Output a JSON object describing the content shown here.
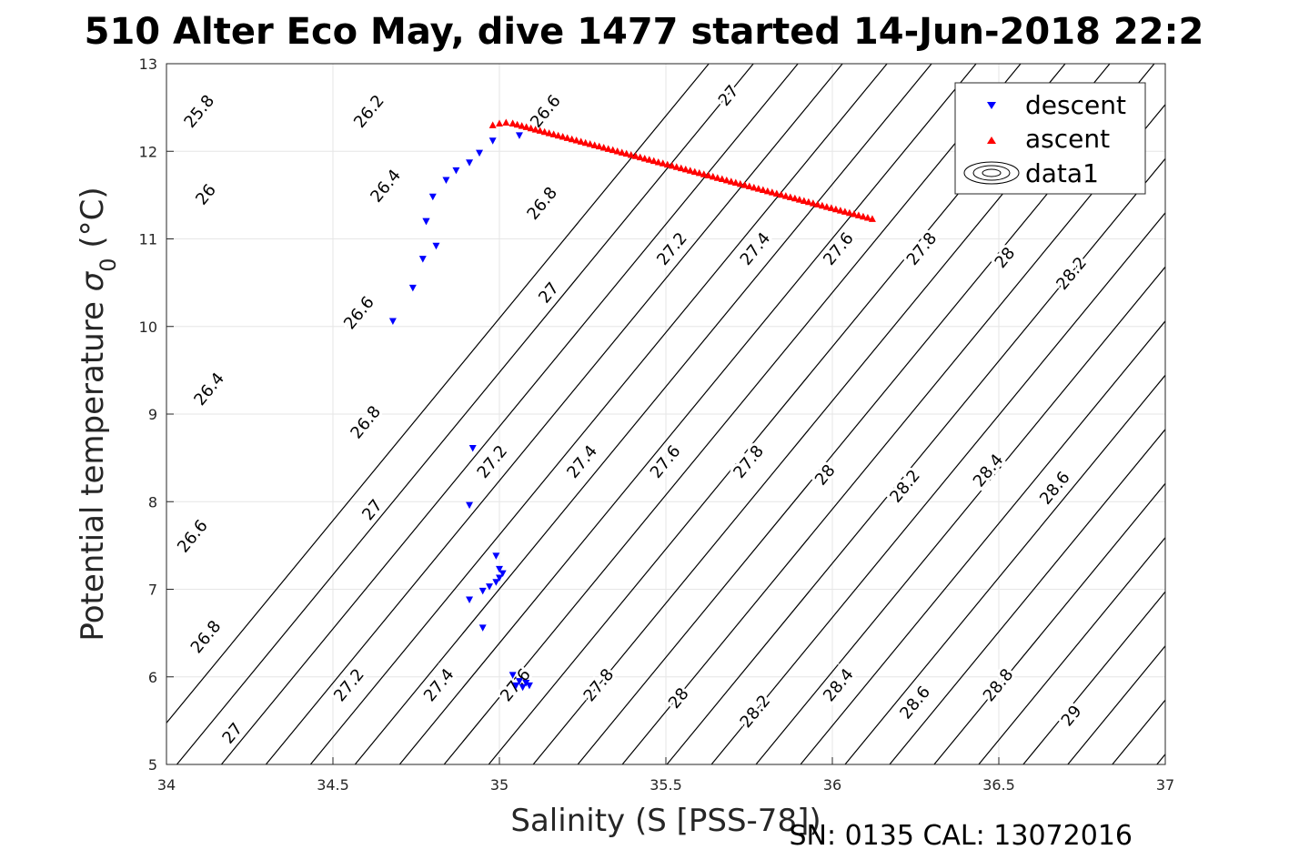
{
  "chart_data": {
    "type": "scatter",
    "title": "510 Alter Eco May, dive 1477 started 14-Jun-2018 22:2",
    "xlabel": "Salinity (S [PSS-78])",
    "ylabel_text": "Potential temperature ",
    "ylabel_symbol": "σ",
    "ylabel_sub": "0",
    "ylabel_unit": " (°C)",
    "footer": "SN: 0135  CAL: 13072016",
    "xlim": [
      34,
      37
    ],
    "ylim": [
      5,
      13
    ],
    "xticks": [
      34,
      34.5,
      35,
      35.5,
      36,
      36.5,
      37
    ],
    "xtick_labels": [
      "34",
      "34.5",
      "35",
      "35.5",
      "36",
      "36.5",
      "37"
    ],
    "yticks": [
      5,
      6,
      7,
      8,
      9,
      10,
      11,
      12,
      13
    ],
    "ytick_labels": [
      "5",
      "6",
      "7",
      "8",
      "9",
      "10",
      "11",
      "12",
      "13"
    ],
    "grid": true,
    "legend_position": "top-right",
    "series": [
      {
        "name": "descent",
        "marker": "triangle-down",
        "color": "#0000ff",
        "x": [
          34.68,
          34.74,
          34.77,
          34.78,
          34.81,
          34.8,
          34.78,
          34.84,
          34.87,
          34.91,
          34.94,
          34.98,
          35.06,
          34.92,
          34.91,
          34.99,
          35.0,
          35.01,
          35.0,
          34.99,
          34.97,
          34.95,
          34.91,
          34.95,
          35.04,
          35.05,
          35.07,
          35.09,
          35.06,
          35.08
        ],
        "y": [
          10.06,
          10.44,
          10.77,
          11.2,
          10.92,
          11.48,
          11.2,
          11.67,
          11.78,
          11.87,
          11.98,
          12.12,
          12.18,
          8.61,
          7.96,
          7.38,
          7.23,
          7.18,
          7.13,
          7.08,
          7.03,
          6.98,
          6.88,
          6.56,
          6.02,
          5.9,
          5.88,
          5.9,
          5.95,
          5.93
        ]
      },
      {
        "name": "ascent",
        "marker": "triangle-up",
        "color": "#ff0000",
        "x": [
          34.98,
          35.0,
          35.02,
          35.04
        ],
        "y": [
          12.3,
          12.32,
          12.33,
          12.32
        ]
      },
      {
        "name": "data1",
        "marker": "contour",
        "color": "#000000"
      }
    ],
    "ascent_line": {
      "x_start": 35.04,
      "y_start": 12.32,
      "x_end": 36.12,
      "y_end": 11.23,
      "points": 80
    },
    "contour_labels": [
      {
        "text": "25.8",
        "x": 34.1,
        "y": 12.45
      },
      {
        "text": "26",
        "x": 34.12,
        "y": 11.5
      },
      {
        "text": "26.2",
        "x": 34.61,
        "y": 12.45
      },
      {
        "text": "26.4",
        "x": 34.66,
        "y": 11.6
      },
      {
        "text": "26.4",
        "x": 34.13,
        "y": 9.28
      },
      {
        "text": "26.6",
        "x": 35.14,
        "y": 12.45
      },
      {
        "text": "26.6",
        "x": 34.58,
        "y": 10.15
      },
      {
        "text": "26.6",
        "x": 34.08,
        "y": 7.6
      },
      {
        "text": "26.8",
        "x": 35.13,
        "y": 11.4
      },
      {
        "text": "26.8",
        "x": 34.6,
        "y": 8.9
      },
      {
        "text": "26.8",
        "x": 34.12,
        "y": 6.45
      },
      {
        "text": "27",
        "x": 35.69,
        "y": 12.63
      },
      {
        "text": "27",
        "x": 35.15,
        "y": 10.38
      },
      {
        "text": "27",
        "x": 34.62,
        "y": 7.9
      },
      {
        "text": "27",
        "x": 34.2,
        "y": 5.35
      },
      {
        "text": "27.2",
        "x": 35.52,
        "y": 10.88
      },
      {
        "text": "27.2",
        "x": 34.98,
        "y": 8.45
      },
      {
        "text": "27.2",
        "x": 34.55,
        "y": 5.9
      },
      {
        "text": "27.4",
        "x": 35.77,
        "y": 10.88
      },
      {
        "text": "27.4",
        "x": 35.25,
        "y": 8.45
      },
      {
        "text": "27.4",
        "x": 34.82,
        "y": 5.9
      },
      {
        "text": "27.6",
        "x": 36.02,
        "y": 10.88
      },
      {
        "text": "27.6",
        "x": 35.5,
        "y": 8.45
      },
      {
        "text": "27.6",
        "x": 35.05,
        "y": 5.9
      },
      {
        "text": "27.8",
        "x": 36.27,
        "y": 10.88
      },
      {
        "text": "27.8",
        "x": 35.75,
        "y": 8.45
      },
      {
        "text": "27.8",
        "x": 35.3,
        "y": 5.9
      },
      {
        "text": "28",
        "x": 36.52,
        "y": 10.78
      },
      {
        "text": "28",
        "x": 35.98,
        "y": 8.3
      },
      {
        "text": "28",
        "x": 35.54,
        "y": 5.75
      },
      {
        "text": "28.2",
        "x": 36.72,
        "y": 10.6
      },
      {
        "text": "28.2",
        "x": 36.22,
        "y": 8.17
      },
      {
        "text": "28.2",
        "x": 35.77,
        "y": 5.6
      },
      {
        "text": "28.4",
        "x": 36.47,
        "y": 8.35
      },
      {
        "text": "28.4",
        "x": 36.02,
        "y": 5.9
      },
      {
        "text": "28.6",
        "x": 36.67,
        "y": 8.15
      },
      {
        "text": "28.6",
        "x": 36.25,
        "y": 5.7
      },
      {
        "text": "28.8",
        "x": 36.5,
        "y": 5.9
      },
      {
        "text": "29",
        "x": 36.72,
        "y": 5.55
      }
    ]
  }
}
